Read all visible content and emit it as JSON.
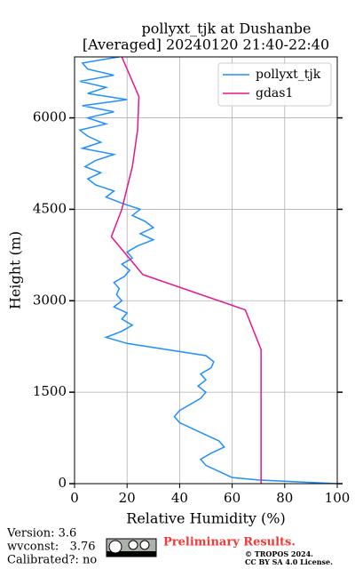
{
  "chart_data": {
    "type": "line",
    "title": "pollyxt_tjk at Dushanbe",
    "subtitle": "[Averaged] 20240120 21:40-22:40",
    "x_label": "Relative Humidity (%)",
    "y_label": "Height (m)",
    "xlim": [
      0,
      100
    ],
    "ylim": [
      0,
      7000
    ],
    "xticks": [
      0,
      20,
      40,
      60,
      80,
      100
    ],
    "yticks": [
      0,
      1500,
      3000,
      4500,
      6000
    ],
    "grid": true,
    "legend": "upper right",
    "series": [
      {
        "name": "pollyxt_tjk",
        "color": "#1f8fff",
        "heights": [
          0,
          30,
          60,
          100,
          200,
          300,
          400,
          500,
          600,
          700,
          800,
          900,
          1000,
          1100,
          1200,
          1300,
          1400,
          1500,
          1600,
          1700,
          1800,
          1900,
          2000,
          2100,
          2200,
          2300,
          2400,
          2500,
          2600,
          2700,
          2800,
          2900,
          3000,
          3100,
          3200,
          3300,
          3400,
          3500,
          3600,
          3700,
          3800,
          3900,
          4000,
          4100,
          4200,
          4300,
          4400,
          4500,
          4600,
          4700,
          4800,
          4900,
          5000,
          5100,
          5200,
          5300,
          5400,
          5500,
          5600,
          5700,
          5800,
          5900,
          6000,
          6100,
          6200,
          6300,
          6400,
          6500,
          6600,
          6700,
          6800,
          6900,
          7000
        ],
        "values": [
          100,
          85,
          70,
          60,
          55,
          50,
          48,
          52,
          57,
          55,
          50,
          45,
          40,
          38,
          40,
          44,
          48,
          50,
          47,
          50,
          48,
          52,
          53,
          50,
          35,
          20,
          12,
          18,
          22,
          18,
          20,
          15,
          18,
          16,
          17,
          15,
          19,
          21,
          18,
          22,
          20,
          24,
          30,
          25,
          30,
          27,
          22,
          25,
          18,
          12,
          15,
          8,
          5,
          10,
          4,
          8,
          15,
          3,
          10,
          5,
          2,
          12,
          5,
          15,
          3,
          20,
          5,
          12,
          2,
          15,
          5,
          3,
          17
        ]
      },
      {
        "name": "gdas1",
        "color": "#e8168c",
        "heights": [
          0,
          2200,
          2850,
          3430,
          4050,
          4500,
          5200,
          5800,
          6350,
          7000
        ],
        "values": [
          71,
          71,
          65,
          26,
          14,
          18,
          22,
          24,
          24.5,
          18
        ]
      }
    ],
    "footer": {
      "version": "Version: 3.6",
      "wvconst": "wvconst:   3.76",
      "calibrated": "Calibrated?: no",
      "preliminary": "Preliminary Results.",
      "copyright": "© TROPOS 2024.",
      "license": "CC BY SA 4.0 License."
    }
  }
}
